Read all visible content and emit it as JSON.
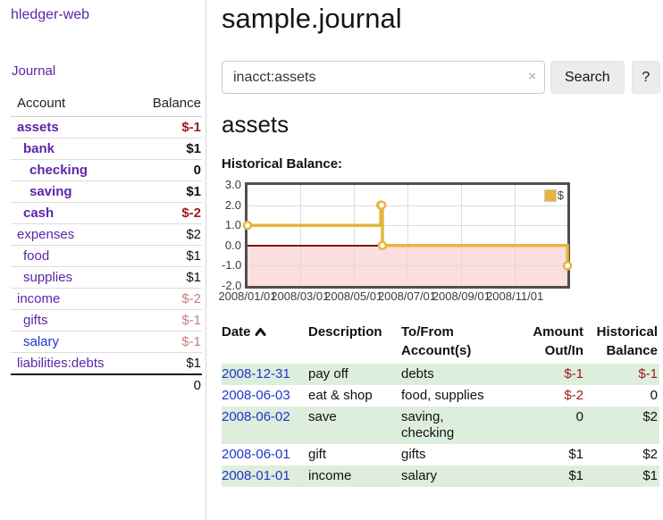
{
  "app": {
    "brand": "hledger-web",
    "nav_journal": "Journal"
  },
  "sidebar": {
    "table": {
      "headers": {
        "account": "Account",
        "balance": "Balance"
      },
      "accounts": [
        {
          "label": "assets",
          "depth": 1,
          "bold": true,
          "balance": "$-1",
          "tone": "neg-strong",
          "link": "purple"
        },
        {
          "label": "bank",
          "depth": 2,
          "bold": true,
          "balance": "$1",
          "tone": "pos",
          "link": "purple"
        },
        {
          "label": "checking",
          "depth": 3,
          "bold": true,
          "balance": "0",
          "tone": "pos",
          "link": "purple"
        },
        {
          "label": "saving",
          "depth": 3,
          "bold": true,
          "balance": "$1",
          "tone": "pos",
          "link": "purple"
        },
        {
          "label": "cash",
          "depth": 2,
          "bold": true,
          "balance": "$-2",
          "tone": "neg-strong",
          "link": "purple"
        },
        {
          "label": "expenses",
          "depth": 1,
          "bold": false,
          "balance": "$2",
          "tone": "pos",
          "link": "purple"
        },
        {
          "label": "food",
          "depth": 2,
          "bold": false,
          "balance": "$1",
          "tone": "pos",
          "link": "purple"
        },
        {
          "label": "supplies",
          "depth": 2,
          "bold": false,
          "balance": "$1",
          "tone": "pos",
          "link": "purple"
        },
        {
          "label": "income",
          "depth": 1,
          "bold": false,
          "balance": "$-2",
          "tone": "neg-soft",
          "link": "purple"
        },
        {
          "label": "gifts",
          "depth": 2,
          "bold": false,
          "balance": "$-1",
          "tone": "neg-soft",
          "link": "purple"
        },
        {
          "label": "salary",
          "depth": 2,
          "bold": false,
          "balance": "$-1",
          "tone": "neg-soft",
          "link": "blue"
        },
        {
          "label": "liabilities:debts",
          "depth": 1,
          "bold": false,
          "balance": "$1",
          "tone": "pos",
          "link": "purple"
        }
      ],
      "total": "0"
    }
  },
  "main": {
    "title": "sample.journal",
    "search": {
      "value": "inacct:assets",
      "clear_icon": "×",
      "button": "Search",
      "help_button": "?"
    },
    "account_heading": "assets",
    "chart_heading": "Historical Balance:"
  },
  "chart_data": {
    "type": "line",
    "title": "Historical Balance",
    "steps": true,
    "series": [
      {
        "name": "$",
        "color": "#e7b53e",
        "points": [
          [
            "2008-01-01",
            1
          ],
          [
            "2008-06-01",
            2
          ],
          [
            "2008-06-02",
            2
          ],
          [
            "2008-06-03",
            0
          ],
          [
            "2008-12-31",
            -1
          ]
        ]
      }
    ],
    "xlim": [
      "2008-01-01",
      "2008-12-31"
    ],
    "ylim": [
      -2,
      3
    ],
    "ytick_values": [
      3,
      2,
      1,
      0,
      -1,
      -2
    ],
    "ytick_labels": [
      "3.0",
      "2.0",
      "1.0",
      "0.0",
      "-1.0",
      "-2.0"
    ],
    "xtick_dates": [
      "2008-01-01",
      "2008-03-01",
      "2008-05-01",
      "2008-07-01",
      "2008-09-01",
      "2008-11-01"
    ],
    "xtick_labels": [
      "2008/01/01",
      "2008/03/01",
      "2008/05/01",
      "2008/07/01",
      "2008/09/01",
      "2008/11/01"
    ],
    "legend": {
      "label": "$",
      "position": "top-right",
      "swatch_color": "#e7b53e"
    },
    "grid": true,
    "negative_region_color": "#fcdede",
    "zero_line_color": "#7d1616"
  },
  "transactions": {
    "headers": {
      "date": "Date",
      "sort": "ascending",
      "description": "Description",
      "accounts": "To/From\nAccount(s)",
      "amount": "Amount\nOut/In",
      "balance": "Historical\nBalance"
    },
    "rows": [
      {
        "date": "2008-12-31",
        "description": "pay off",
        "accounts": "debts",
        "amount": "$-1",
        "amount_tone": "neg-strong",
        "balance": "$-1",
        "balance_tone": "neg-strong",
        "stripe": true
      },
      {
        "date": "2008-06-03",
        "description": "eat & shop",
        "accounts": "food, supplies",
        "amount": "$-2",
        "amount_tone": "neg-strong",
        "balance": "0",
        "balance_tone": "pos",
        "stripe": false
      },
      {
        "date": "2008-06-02",
        "description": "save",
        "accounts": "saving,\nchecking",
        "amount": "0",
        "amount_tone": "pos",
        "balance": "$2",
        "balance_tone": "pos",
        "stripe": true
      },
      {
        "date": "2008-06-01",
        "description": "gift",
        "accounts": "gifts",
        "amount": "$1",
        "amount_tone": "pos",
        "balance": "$2",
        "balance_tone": "pos",
        "stripe": false
      },
      {
        "date": "2008-01-01",
        "description": "income",
        "accounts": "salary",
        "amount": "$1",
        "amount_tone": "pos",
        "balance": "$1",
        "balance_tone": "pos",
        "stripe": true
      }
    ]
  },
  "colors": {
    "link_purple": "#5b26a8",
    "link_blue": "#2233cc",
    "negative_strong": "#a01b1b",
    "negative_soft": "#c38080",
    "row_stripe_green": "#ddeedd",
    "series_yellow": "#e7b53e",
    "chart_negative_fill": "#fcdede",
    "chart_zero_line": "#7d1616"
  }
}
